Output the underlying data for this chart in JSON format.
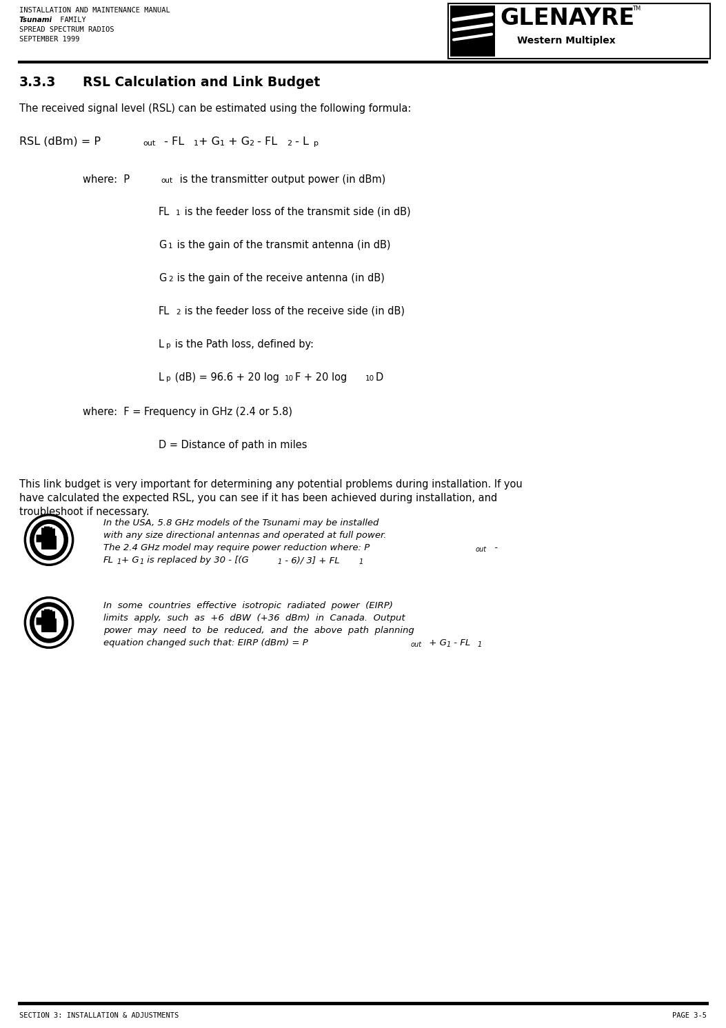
{
  "bg_color": "#ffffff",
  "text_color": "#000000",
  "header_line1": "INSTALLATION AND MAINTENANCE MANUAL",
  "header_line2_italic": "Tsunami",
  "header_line2_rest": " FAMILY",
  "header_line3": "SPREAD SPECTRUM RADIOS",
  "header_line4": "SEPTEMBER 1999",
  "logo_text1": "GLENAYRE",
  "logo_text2": "Western Multiplex",
  "section_num": "3.3.3",
  "section_title": "RSL Calculation and Link Budget",
  "intro": "The received signal level (RSL) can be estimated using the following formula:",
  "footer_left": "SECTION 3: INSTALLATION & ADJUSTMENTS",
  "footer_right": "PAGE 3-5",
  "header_fs": 7.5,
  "body_fs": 10.5,
  "formula_fs": 11.5,
  "sub_fs": 8.0,
  "note_fs": 9.5,
  "note_sub_fs": 7.0,
  "section_fs": 13.5
}
